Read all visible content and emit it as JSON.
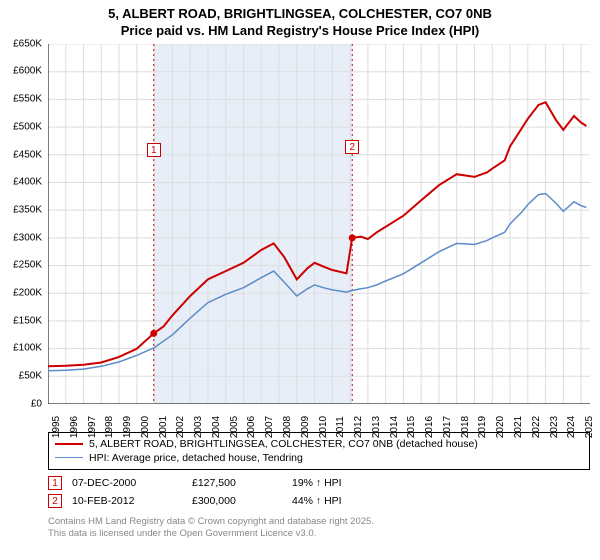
{
  "title": {
    "line1": "5, ALBERT ROAD, BRIGHTLINGSEA, COLCHESTER, CO7 0NB",
    "line2": "Price paid vs. HM Land Registry's House Price Index (HPI)"
  },
  "chart": {
    "type": "line",
    "background_color": "#ffffff",
    "grid_color": "#dddddd",
    "shaded_band_color": "#e8eef8",
    "axis_fontsize": 10,
    "ylim": [
      0,
      650000
    ],
    "ytick_step": 50000,
    "y_ticks": [
      "£0",
      "£50K",
      "£100K",
      "£150K",
      "£200K",
      "£250K",
      "£300K",
      "£350K",
      "£400K",
      "£450K",
      "£500K",
      "£550K",
      "£600K",
      "£650K"
    ],
    "xlim": [
      1995,
      2025.5
    ],
    "x_ticks": [
      "1995",
      "1996",
      "1997",
      "1998",
      "1999",
      "2000",
      "2001",
      "2002",
      "2003",
      "2004",
      "2005",
      "2006",
      "2007",
      "2008",
      "2009",
      "2010",
      "2011",
      "2012",
      "2013",
      "2014",
      "2015",
      "2016",
      "2017",
      "2018",
      "2019",
      "2020",
      "2021",
      "2022",
      "2023",
      "2024",
      "2025"
    ],
    "shaded_band": {
      "x_start": 2000.95,
      "x_end": 2012.12
    },
    "series": [
      {
        "name": "price_paid",
        "label": "5, ALBERT ROAD, BRIGHTLINGSEA, COLCHESTER, CO7 0NB (detached house)",
        "color": "#cc0000",
        "line_width": 2,
        "data": [
          [
            1995,
            68000
          ],
          [
            1996,
            69000
          ],
          [
            1997,
            71000
          ],
          [
            1998,
            75000
          ],
          [
            1999,
            85000
          ],
          [
            2000,
            100000
          ],
          [
            2000.95,
            127500
          ],
          [
            2001.5,
            140000
          ],
          [
            2002,
            160000
          ],
          [
            2003,
            195000
          ],
          [
            2004,
            225000
          ],
          [
            2005,
            240000
          ],
          [
            2006,
            255000
          ],
          [
            2007,
            278000
          ],
          [
            2007.7,
            290000
          ],
          [
            2008.3,
            265000
          ],
          [
            2009,
            225000
          ],
          [
            2009.6,
            245000
          ],
          [
            2010,
            255000
          ],
          [
            2010.5,
            248000
          ],
          [
            2011,
            242000
          ],
          [
            2011.8,
            236000
          ],
          [
            2012.12,
            300000
          ],
          [
            2012.6,
            302000
          ],
          [
            2013,
            298000
          ],
          [
            2013.5,
            310000
          ],
          [
            2014,
            320000
          ],
          [
            2015,
            340000
          ],
          [
            2016,
            368000
          ],
          [
            2017,
            395000
          ],
          [
            2018,
            415000
          ],
          [
            2019,
            410000
          ],
          [
            2019.7,
            418000
          ],
          [
            2020,
            425000
          ],
          [
            2020.7,
            440000
          ],
          [
            2021,
            465000
          ],
          [
            2021.7,
            500000
          ],
          [
            2022,
            515000
          ],
          [
            2022.6,
            540000
          ],
          [
            2023,
            545000
          ],
          [
            2023.6,
            512000
          ],
          [
            2024,
            495000
          ],
          [
            2024.6,
            520000
          ],
          [
            2025,
            508000
          ],
          [
            2025.3,
            502000
          ]
        ]
      },
      {
        "name": "hpi",
        "label": "HPI: Average price, detached house, Tendring",
        "color": "#5b8bc8",
        "line_width": 1.5,
        "data": [
          [
            1995,
            60000
          ],
          [
            1996,
            61000
          ],
          [
            1997,
            63000
          ],
          [
            1998,
            68000
          ],
          [
            1999,
            76000
          ],
          [
            2000,
            88000
          ],
          [
            2001,
            102000
          ],
          [
            2002,
            125000
          ],
          [
            2003,
            155000
          ],
          [
            2004,
            183000
          ],
          [
            2005,
            198000
          ],
          [
            2006,
            210000
          ],
          [
            2007,
            228000
          ],
          [
            2007.7,
            240000
          ],
          [
            2008.3,
            220000
          ],
          [
            2009,
            195000
          ],
          [
            2009.6,
            208000
          ],
          [
            2010,
            215000
          ],
          [
            2010.5,
            210000
          ],
          [
            2011,
            206000
          ],
          [
            2011.8,
            202000
          ],
          [
            2012,
            204000
          ],
          [
            2012.6,
            208000
          ],
          [
            2013,
            210000
          ],
          [
            2013.5,
            215000
          ],
          [
            2014,
            222000
          ],
          [
            2015,
            235000
          ],
          [
            2016,
            255000
          ],
          [
            2017,
            275000
          ],
          [
            2018,
            290000
          ],
          [
            2019,
            288000
          ],
          [
            2019.7,
            295000
          ],
          [
            2020,
            300000
          ],
          [
            2020.7,
            310000
          ],
          [
            2021,
            325000
          ],
          [
            2021.7,
            348000
          ],
          [
            2022,
            360000
          ],
          [
            2022.6,
            378000
          ],
          [
            2023,
            380000
          ],
          [
            2023.6,
            362000
          ],
          [
            2024,
            348000
          ],
          [
            2024.6,
            365000
          ],
          [
            2025,
            358000
          ],
          [
            2025.3,
            355000
          ]
        ]
      }
    ],
    "markers": [
      {
        "label": "1",
        "x": 2000.95,
        "y": 127500,
        "label_y_offset": -190
      },
      {
        "label": "2",
        "x": 2012.12,
        "y": 300000,
        "label_y_offset": -98
      }
    ]
  },
  "legend": {
    "items": [
      {
        "color": "#cc0000",
        "width": 2,
        "label": "5, ALBERT ROAD, BRIGHTLINGSEA, COLCHESTER, CO7 0NB (detached house)"
      },
      {
        "color": "#5b8bc8",
        "width": 1.5,
        "label": "HPI: Average price, detached house, Tendring"
      }
    ]
  },
  "data_points": [
    {
      "marker": "1",
      "date": "07-DEC-2000",
      "price": "£127,500",
      "pct": "19% ↑ HPI"
    },
    {
      "marker": "2",
      "date": "10-FEB-2012",
      "price": "£300,000",
      "pct": "44% ↑ HPI"
    }
  ],
  "footer": {
    "line1": "Contains HM Land Registry data © Crown copyright and database right 2025.",
    "line2": "This data is licensed under the Open Government Licence v3.0."
  }
}
